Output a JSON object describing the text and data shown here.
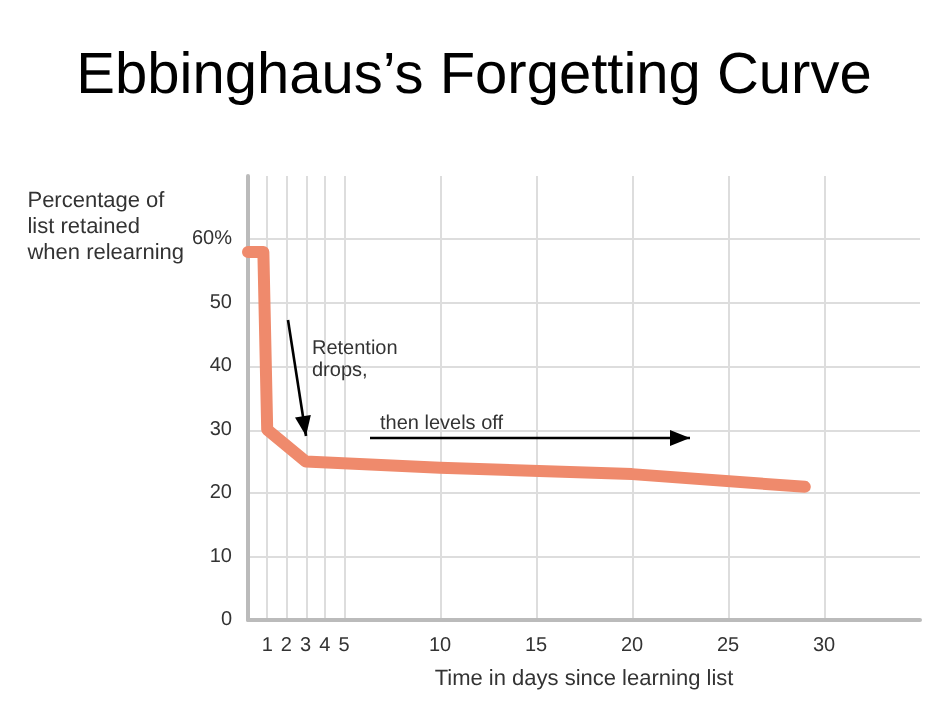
{
  "chart_data": {
    "type": "line",
    "title": "Ebbinghaus’s Forgetting Curve",
    "xlabel": "Time in days since learning list",
    "ylabel": "Percentage of\nlist retained\nwhen relearning",
    "x": [
      0,
      0.8,
      1,
      3,
      10,
      20,
      29
    ],
    "series": [
      {
        "color": "#ef8a6c",
        "values": [
          58,
          58,
          30,
          25,
          24,
          23,
          21
        ]
      }
    ],
    "xlim": [
      0,
      35
    ],
    "xticks": [
      1,
      2,
      3,
      4,
      5,
      10,
      15,
      20,
      25,
      30
    ],
    "ylim": [
      0,
      70
    ],
    "yticks": [
      0,
      10,
      20,
      30,
      40,
      50,
      {
        "value": 60,
        "label": "60%"
      }
    ],
    "grid": true,
    "marker": "none",
    "line_style": "solid",
    "annotations": [
      "Retention\ndrops,",
      "then levels off"
    ]
  }
}
